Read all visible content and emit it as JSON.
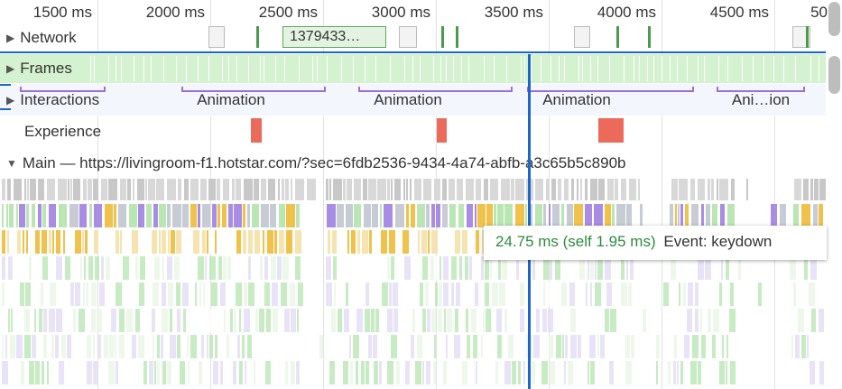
{
  "ruler": {
    "ticks": [
      "1500 ms",
      "2000 ms",
      "2500 ms",
      "3000 ms",
      "3500 ms",
      "4000 ms",
      "4500 ms",
      "50"
    ]
  },
  "tracks": {
    "network": {
      "label": "Network",
      "request_label": "1379433…"
    },
    "frames": {
      "label": "Frames"
    },
    "interactions": {
      "label": "Interactions",
      "items": [
        "Animation",
        "Animation",
        "Animation",
        "Ani…ion"
      ]
    },
    "experience": {
      "label": "Experience"
    },
    "main": {
      "label": "Main — https://livingroom-f1.hotstar.com/?sec=6fdb2536-9434-4a74-abfb-a3c65b5c890b"
    }
  },
  "tooltip": {
    "duration": "24.75 ms (self 1.95 ms)",
    "event": "Event: keydown"
  },
  "colors": {
    "frames": "#d4f2cf",
    "interaction": "#9b6fd6",
    "experience": "#ec6a5a",
    "scripting": "#f0c14b",
    "rendering": "#a98ce3",
    "painting": "#b9e6b3",
    "task": "#c8c8c8",
    "cursor": "#1a66cc",
    "tooltip_duration": "#2e8b3e"
  }
}
